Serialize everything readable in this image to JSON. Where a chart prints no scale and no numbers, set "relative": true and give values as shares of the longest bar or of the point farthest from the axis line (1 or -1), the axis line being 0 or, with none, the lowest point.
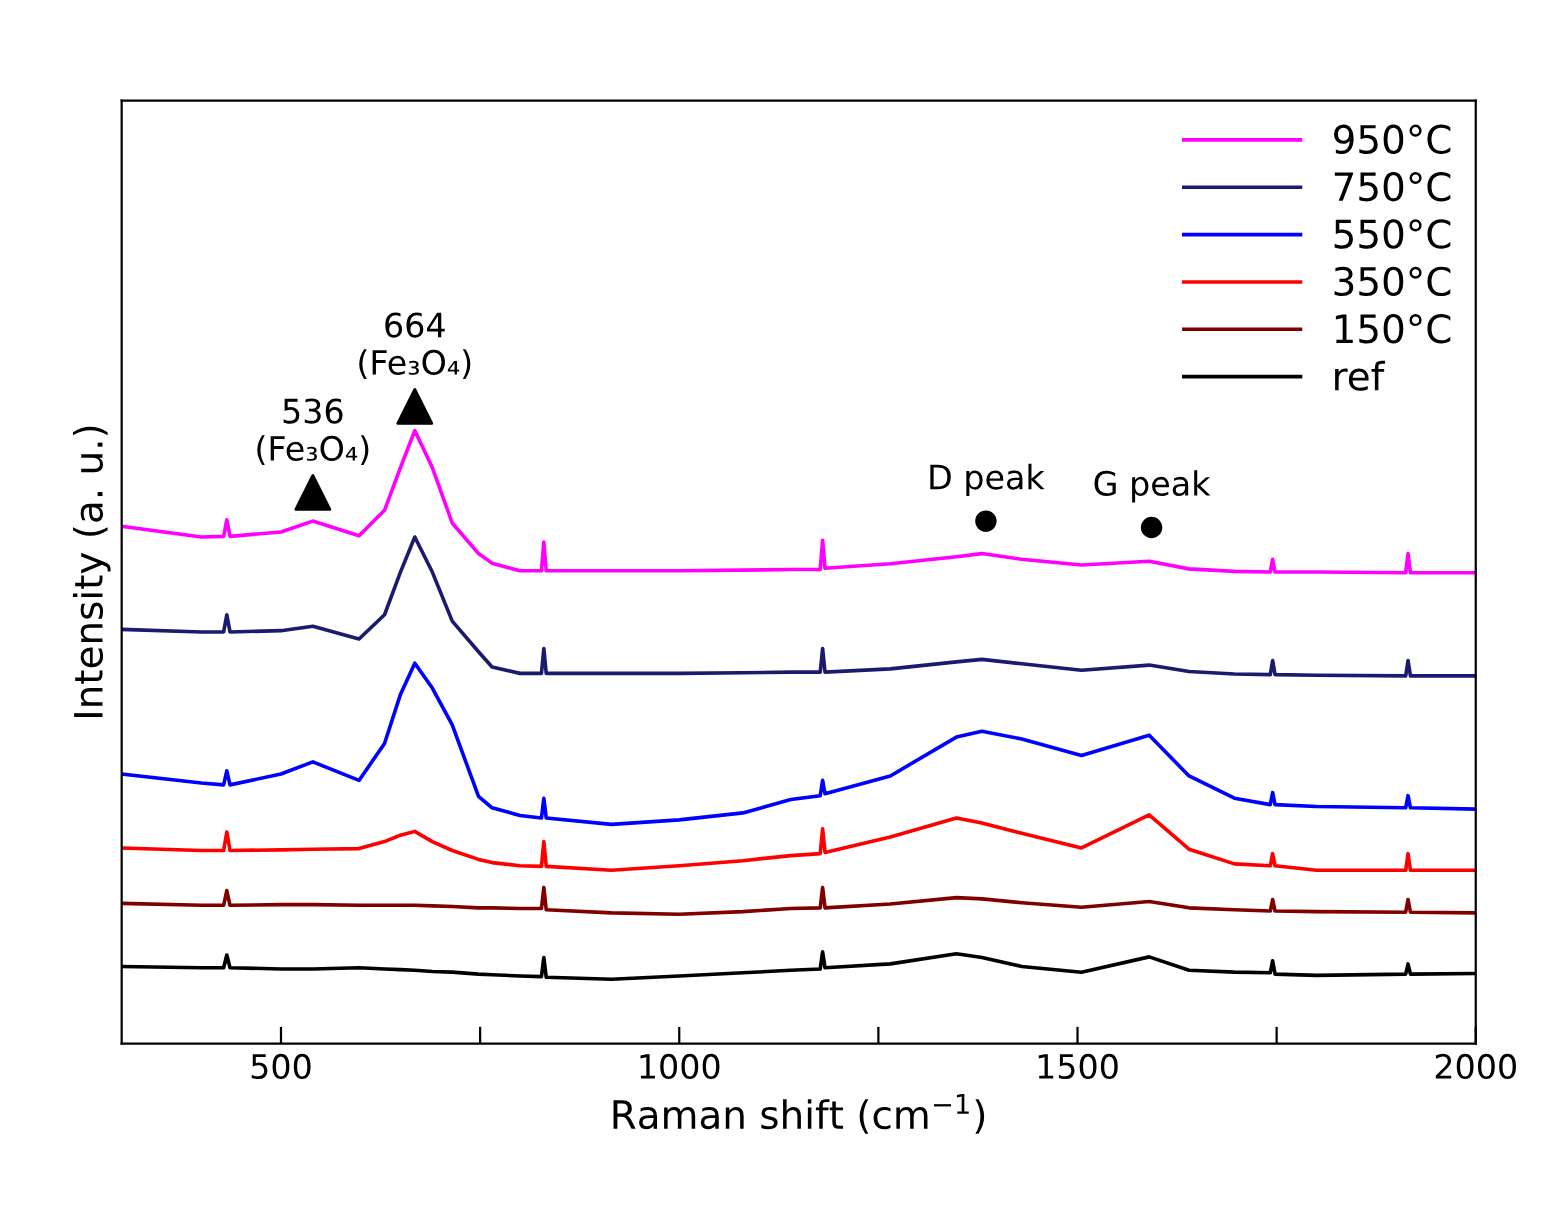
{
  "chart_data": {
    "type": "line",
    "relative": true,
    "xlabel": "Raman shift (cm$^{−1}$)",
    "ylabel": "Intensity (a. u.)",
    "xlim": [
      300,
      2000
    ],
    "xticks": [
      500,
      1000,
      1500,
      2000,
      {
        "value": 750,
        "label": null
      },
      {
        "value": 1250,
        "label": null
      },
      {
        "value": 1750,
        "label": null
      }
    ],
    "tick_labels": "x",
    "grid": false,
    "legend": "top right",
    "line_style": "solid",
    "marker": "none",
    "x": [
      300,
      400,
      428,
      432,
      436,
      500,
      540,
      598,
      630,
      650,
      668,
      690,
      715,
      748,
      765,
      800,
      827,
      830,
      833,
      915,
      1000,
      1080,
      1140,
      1177,
      1180,
      1183,
      1265,
      1348,
      1380,
      1430,
      1505,
      1590,
      1640,
      1697,
      1742,
      1745,
      1748,
      1800,
      1912,
      1915,
      1918,
      2000
    ],
    "series": [
      {
        "name": "950°C",
        "color": "#ff00ff",
        "values": [
          0.812,
          0.795,
          0.796,
          0.822,
          0.796,
          0.803,
          0.82,
          0.797,
          0.837,
          0.904,
          0.962,
          0.904,
          0.817,
          0.769,
          0.754,
          0.742,
          0.742,
          0.787,
          0.742,
          0.742,
          0.742,
          0.743,
          0.744,
          0.744,
          0.79,
          0.746,
          0.753,
          0.764,
          0.769,
          0.76,
          0.751,
          0.757,
          0.745,
          0.741,
          0.74,
          0.76,
          0.74,
          0.74,
          0.739,
          0.769,
          0.739,
          0.739
        ]
      },
      {
        "name": "750°C",
        "color": "#1a1a6e",
        "values": [
          0.65,
          0.646,
          0.646,
          0.673,
          0.646,
          0.648,
          0.655,
          0.635,
          0.673,
          0.74,
          0.795,
          0.74,
          0.663,
          0.615,
          0.591,
          0.581,
          0.581,
          0.62,
          0.581,
          0.581,
          0.581,
          0.582,
          0.583,
          0.583,
          0.62,
          0.583,
          0.588,
          0.599,
          0.603,
          0.596,
          0.586,
          0.594,
          0.584,
          0.58,
          0.579,
          0.601,
          0.579,
          0.578,
          0.577,
          0.601,
          0.577,
          0.577
        ]
      },
      {
        "name": "550°C",
        "color": "#0000ff",
        "values": [
          0.423,
          0.409,
          0.406,
          0.428,
          0.406,
          0.423,
          0.442,
          0.413,
          0.471,
          0.548,
          0.597,
          0.558,
          0.5,
          0.388,
          0.37,
          0.358,
          0.354,
          0.385,
          0.354,
          0.344,
          0.351,
          0.362,
          0.383,
          0.389,
          0.413,
          0.392,
          0.42,
          0.481,
          0.49,
          0.478,
          0.452,
          0.484,
          0.42,
          0.385,
          0.375,
          0.394,
          0.375,
          0.372,
          0.37,
          0.389,
          0.37,
          0.368
        ]
      },
      {
        "name": "350°C",
        "color": "#ff0000",
        "values": [
          0.307,
          0.303,
          0.303,
          0.332,
          0.303,
          0.304,
          0.305,
          0.306,
          0.317,
          0.327,
          0.333,
          0.317,
          0.303,
          0.289,
          0.284,
          0.279,
          0.278,
          0.317,
          0.278,
          0.272,
          0.279,
          0.287,
          0.295,
          0.298,
          0.337,
          0.3,
          0.324,
          0.354,
          0.346,
          0.33,
          0.307,
          0.359,
          0.305,
          0.282,
          0.279,
          0.298,
          0.279,
          0.272,
          0.272,
          0.298,
          0.272,
          0.272
        ]
      },
      {
        "name": "150°C",
        "color": "#800000",
        "values": [
          0.22,
          0.217,
          0.217,
          0.24,
          0.217,
          0.218,
          0.218,
          0.217,
          0.217,
          0.217,
          0.217,
          0.216,
          0.215,
          0.213,
          0.213,
          0.212,
          0.212,
          0.245,
          0.21,
          0.205,
          0.203,
          0.207,
          0.212,
          0.213,
          0.245,
          0.213,
          0.219,
          0.229,
          0.227,
          0.221,
          0.214,
          0.223,
          0.213,
          0.21,
          0.208,
          0.226,
          0.208,
          0.207,
          0.206,
          0.226,
          0.206,
          0.205
        ]
      },
      {
        "name": "ref",
        "color": "#000000",
        "values": [
          0.121,
          0.119,
          0.119,
          0.139,
          0.119,
          0.117,
          0.117,
          0.119,
          0.117,
          0.116,
          0.115,
          0.113,
          0.112,
          0.109,
          0.108,
          0.106,
          0.105,
          0.135,
          0.104,
          0.101,
          0.106,
          0.111,
          0.115,
          0.117,
          0.144,
          0.119,
          0.125,
          0.141,
          0.135,
          0.121,
          0.112,
          0.136,
          0.115,
          0.112,
          0.111,
          0.13,
          0.109,
          0.107,
          0.109,
          0.125,
          0.109,
          0.11
        ]
      },
      {
        "type": "scatter",
        "marker": "triangle",
        "color": "#000000",
        "x": [
          540,
          668
        ],
        "values": [
          0.865,
          1.0
        ]
      },
      {
        "type": "scatter",
        "marker": "circle",
        "color": "#000000",
        "x": [
          1385,
          1593
        ],
        "values": [
          0.82,
          0.81
        ]
      }
    ],
    "annotations": [
      {
        "text": "536\n(Fe₃O₄)",
        "x": 540,
        "y": 0.865
      },
      {
        "text": "664\n(Fe₃O₄)",
        "x": 668,
        "y": 1.0
      },
      {
        "text": "D peak",
        "x": 1385,
        "y": 0.82
      },
      {
        "text": "G peak",
        "x": 1593,
        "y": 0.81
      }
    ]
  }
}
